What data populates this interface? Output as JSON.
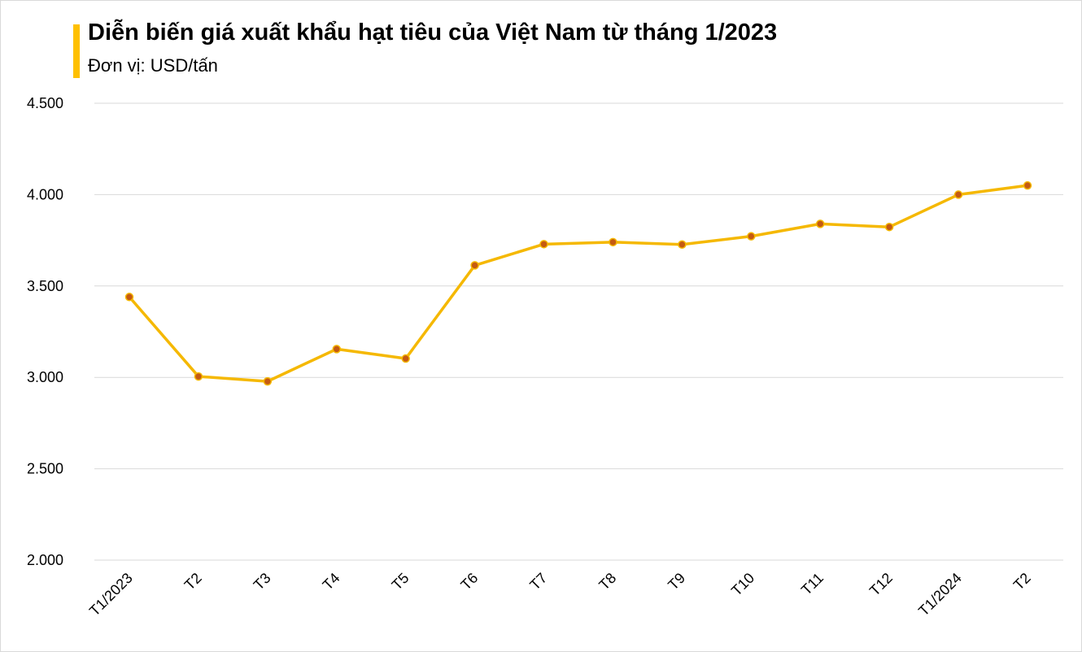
{
  "header": {
    "title": "Diễn biến giá xuất khẩu hạt tiêu của Việt Nam từ tháng 1/2023",
    "subtitle": "Đơn vị: USD/tấn"
  },
  "colors": {
    "accent": "#FFC000",
    "line": "#F5B800",
    "marker_fill": "#C55A11",
    "marker_stroke": "#A0522D",
    "grid": "#d9d9d9"
  },
  "chart_data": {
    "type": "line",
    "title": "Diễn biến giá xuất khẩu hạt tiêu của Việt Nam từ tháng 1/2023",
    "ylabel": "Đơn vị: USD/tấn",
    "xlabel": "",
    "categories": [
      "T1/2023",
      "T2",
      "T3",
      "T4",
      "T5",
      "T6",
      "T7",
      "T8",
      "T9",
      "T10",
      "T11",
      "T12",
      "T1/2024",
      "T2"
    ],
    "series": [
      {
        "values": [
          3440,
          3005,
          2978,
          3155,
          3103,
          3613,
          3729,
          3740,
          3727,
          3772,
          3840,
          3823,
          4000,
          4050
        ]
      }
    ],
    "ylim": [
      2000,
      4500
    ],
    "yticks": [
      2000,
      2500,
      3000,
      3500,
      4000,
      4500
    ],
    "ytick_labels": [
      "2.000",
      "2.500",
      "3.000",
      "3.500",
      "4.000",
      "4.500"
    ],
    "grid": true,
    "legend": "none"
  }
}
